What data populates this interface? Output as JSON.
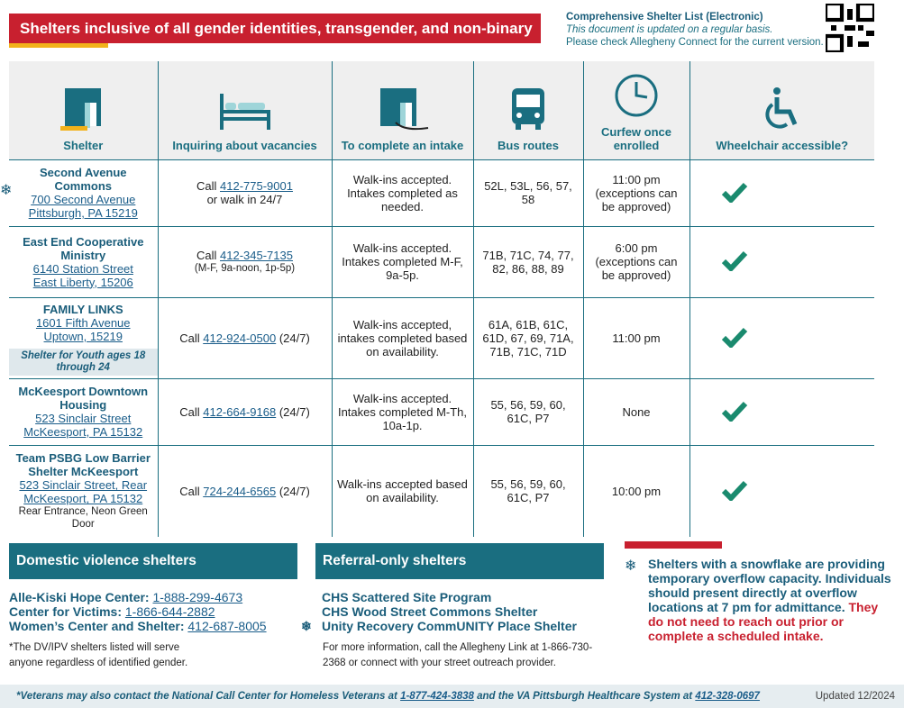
{
  "header": {
    "title": "Shelters inclusive of all gender identities, transgender, and non-binary",
    "list_title": "Comprehensive Shelter List (Electronic)",
    "note1": "This document is updated on a regular basis.",
    "note2": "Please check Allegheny Connect for the current version."
  },
  "table": {
    "columns": [
      "Shelter",
      "Inquiring about vacancies",
      "To complete an intake",
      "Bus routes",
      "Curfew once enrolled",
      "Wheelchair accessible?"
    ],
    "rows": [
      {
        "name": "Second Avenue Commons",
        "address1": "700 Second Avenue",
        "address2": "Pittsburgh, PA 15219",
        "call": "Call ",
        "phone": "412-775-9001",
        "hours": " or walk in 24/7",
        "intake": "Walk-ins accepted. Intakes completed as needed.",
        "bus": "52L, 53L, 56, 57, 58",
        "curfew": "11:00 pm (exceptions can be approved)"
      },
      {
        "name": "East End Cooperative Ministry",
        "address1": "6140 Station Street",
        "address2": "East Liberty, 15206",
        "call": "Call ",
        "phone": "412-345-7135",
        "hours": "(M-F, 9a-noon, 1p-5p)",
        "intake": "Walk-ins accepted. Intakes completed M-F, 9a-5p.",
        "bus": "71B, 71C, 74, 77, 82, 86, 88, 89",
        "curfew": "6:00 pm (exceptions can be approved)"
      },
      {
        "name": "FAMILY LINKS",
        "address1": "1601 Fifth Avenue",
        "address2": "Uptown, 15219",
        "tag": "Shelter for Youth ages 18 through 24",
        "call": "Call ",
        "phone": "412-924-0500",
        "hours": " (24/7)",
        "intake": "Walk-ins accepted, intakes completed based on availability.",
        "bus": "61A, 61B, 61C, 61D, 67, 69, 71A, 71B, 71C, 71D",
        "curfew": "11:00 pm"
      },
      {
        "name": "McKeesport Downtown Housing",
        "address1": "523 Sinclair Street",
        "address2": "McKeesport, PA 15132",
        "call": "Call ",
        "phone": "412-664-9168",
        "hours": " (24/7)",
        "intake": "Walk-ins accepted. Intakes completed M-Th, 10a-1p.",
        "bus": "55, 56, 59, 60, 61C, P7",
        "curfew": "None"
      },
      {
        "name": "Team PSBG Low Barrier Shelter McKeesport",
        "address1": "523 Sinclair Street, Rear",
        "address2": "McKeesport, PA 15132",
        "note": "Rear Entrance, Neon Green Door",
        "call": "Call ",
        "phone": "724-244-6565",
        "hours": " (24/7)",
        "intake": "Walk-ins accepted based on availability.",
        "bus": "55, 56, 59, 60, 61C, P7",
        "curfew": "10:00 pm"
      }
    ]
  },
  "domestic": {
    "title": "Domestic violence shelters",
    "items": [
      {
        "name": "Alle-Kiski Hope Center: ",
        "phone": "1-888-299-4673"
      },
      {
        "name": "Center for Victims: ",
        "phone": "1-866-644-2882"
      },
      {
        "name": "Women’s Center and Shelter: ",
        "phone": "412-687-8005"
      }
    ],
    "note": "*The DV/IPV shelters listed will serve anyone regardless of identified gender."
  },
  "referral": {
    "title": "Referral-only shelters",
    "items": [
      "CHS Scattered Site Program",
      "CHS Wood Street Commons Shelter",
      "Unity Recovery CommUNITY Place Shelter"
    ],
    "note": "For more information, call the Allegheny Link at 1-866-730-2368 or connect with your street outreach provider."
  },
  "snowflake": {
    "text": "Shelters with a snowflake are providing temporary overflow capacity. Individuals should present directly at overflow locations at 7 pm for admittance. ",
    "emphasis": "They do not need to reach out prior or complete a scheduled intake."
  },
  "footer": {
    "text1": "*Veterans may also contact the National Call Center for Homeless Veterans at ",
    "phone1": "1-877-424-3838",
    "text2": " and the VA Pittsburgh Healthcare System at ",
    "phone2": "412-328-0697",
    "updated": "Updated 12/2024"
  }
}
